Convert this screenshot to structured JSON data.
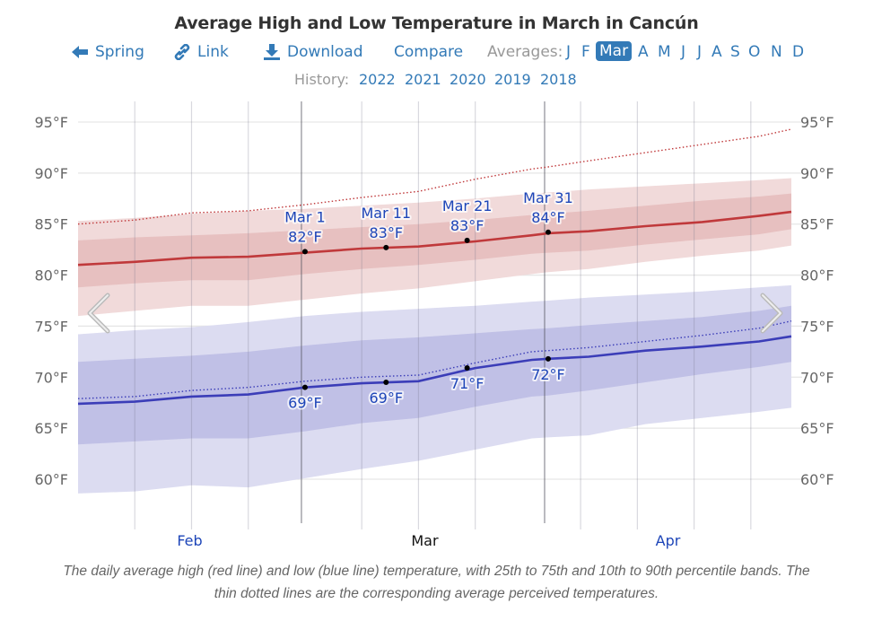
{
  "header": {
    "title": "Average High and Low Temperature in March in Cancún"
  },
  "nav": {
    "back_label": "Spring",
    "back_icon": "arrow-left-icon",
    "link_label": "Link",
    "link_icon": "link-icon",
    "download_label": "Download",
    "download_icon": "download-icon",
    "compare_label": "Compare",
    "averages_label": "Averages:",
    "months": [
      "J",
      "F",
      "Mar",
      "A",
      "M",
      "J",
      "J",
      "A",
      "S",
      "O",
      "N",
      "D"
    ],
    "active_month": "Mar"
  },
  "history": {
    "label": "History:",
    "years": [
      "2022",
      "2021",
      "2020",
      "2019",
      "2018"
    ]
  },
  "caption": "The daily average high (red line) and low (blue line) temperature, with 25th to 75th and 10th to 90th percentile bands. The thin dotted lines are the corresponding average perceived temperatures.",
  "colors": {
    "accent": "#337ab7",
    "high_line": "#c0393b",
    "high_band_inner": "#e7c0c0",
    "high_band_outer": "#f1dada",
    "low_line": "#3b3db8",
    "low_band_inner": "#c0c0e6",
    "low_band_outer": "#dcdcf1",
    "annotation_text": "#1d45b8"
  },
  "chart_data": {
    "type": "line",
    "title": "Average High and Low Temperature in March in Cancún",
    "xlabel": "",
    "ylabel": "",
    "x_unit": "days relative to Mar 1",
    "x_range": [
      -28,
      60
    ],
    "ylim": [
      56,
      97
    ],
    "y_ticks": [
      95,
      90,
      85,
      80,
      75,
      70,
      65,
      60
    ],
    "y_tick_labels": [
      "95°F",
      "90°F",
      "85°F",
      "80°F",
      "75°F",
      "70°F",
      "65°F",
      "60°F"
    ],
    "x_tick_labels": [
      {
        "label": "Feb",
        "day": -14,
        "highlight": false
      },
      {
        "label": "Mar",
        "day": 15,
        "highlight": true
      },
      {
        "label": "Apr",
        "day": 45,
        "highlight": false
      }
    ],
    "month_boundaries": [
      0,
      30
    ],
    "weekly_gridlines": [
      -21,
      -14,
      -7,
      7,
      14,
      21,
      34,
      41,
      48,
      55
    ],
    "x": [
      -28,
      -21,
      -14,
      -7,
      0,
      7,
      14,
      21,
      28,
      30,
      35,
      42,
      49,
      56,
      60
    ],
    "series": [
      {
        "name": "High 90th percentile",
        "values": [
          85.3,
          85.6,
          86.0,
          86.3,
          86.5,
          86.8,
          87.1,
          87.5,
          88.0,
          88.1,
          88.4,
          88.7,
          89.0,
          89.3,
          89.5
        ]
      },
      {
        "name": "High 75th percentile",
        "values": [
          83.4,
          83.7,
          83.9,
          84.1,
          84.4,
          84.7,
          85.0,
          85.4,
          85.9,
          86.0,
          86.3,
          86.8,
          87.3,
          87.7,
          88.0
        ]
      },
      {
        "name": "Average high",
        "values": [
          81.0,
          81.3,
          81.7,
          81.8,
          82.2,
          82.6,
          82.8,
          83.3,
          83.9,
          84.1,
          84.3,
          84.8,
          85.2,
          85.8,
          86.2
        ]
      },
      {
        "name": "High 25th percentile",
        "values": [
          78.8,
          79.2,
          79.5,
          79.5,
          80.1,
          80.6,
          81.0,
          81.5,
          82.1,
          82.2,
          82.4,
          83.0,
          83.5,
          84.0,
          84.5
        ]
      },
      {
        "name": "High 10th percentile",
        "values": [
          76.0,
          76.5,
          77.0,
          77.0,
          77.6,
          78.2,
          78.7,
          79.4,
          80.1,
          80.3,
          80.6,
          81.3,
          81.9,
          82.4,
          82.9
        ]
      },
      {
        "name": "Perceived high",
        "values": [
          85.0,
          85.4,
          86.1,
          86.3,
          86.9,
          87.6,
          88.2,
          89.4,
          90.4,
          90.6,
          91.2,
          92.0,
          92.8,
          93.6,
          94.3
        ]
      },
      {
        "name": "Low 90th percentile",
        "values": [
          74.2,
          74.6,
          74.9,
          75.4,
          76.0,
          76.4,
          76.7,
          77.0,
          77.4,
          77.5,
          77.8,
          78.1,
          78.4,
          78.8,
          79.0
        ]
      },
      {
        "name": "Low 75th percentile",
        "values": [
          71.5,
          71.8,
          72.1,
          72.5,
          73.1,
          73.6,
          73.9,
          74.3,
          74.7,
          74.8,
          75.1,
          75.5,
          75.9,
          76.5,
          77.0
        ]
      },
      {
        "name": "Average low",
        "values": [
          67.4,
          67.6,
          68.1,
          68.3,
          69.0,
          69.4,
          69.6,
          70.9,
          71.7,
          71.8,
          72.0,
          72.6,
          73.0,
          73.5,
          74.0
        ]
      },
      {
        "name": "Low 25th percentile",
        "values": [
          63.4,
          63.7,
          64.0,
          64.0,
          64.7,
          65.5,
          66.0,
          67.1,
          68.1,
          68.2,
          68.7,
          69.5,
          70.3,
          71.0,
          71.5
        ]
      },
      {
        "name": "Low 10th percentile",
        "values": [
          58.6,
          58.8,
          59.4,
          59.2,
          60.1,
          61.0,
          61.8,
          62.9,
          64.0,
          64.1,
          64.3,
          65.4,
          66.0,
          66.6,
          67.0
        ]
      },
      {
        "name": "Perceived low",
        "values": [
          67.9,
          68.1,
          68.7,
          69.0,
          69.6,
          70.0,
          70.2,
          71.4,
          72.5,
          72.6,
          72.9,
          73.5,
          74.1,
          74.8,
          75.5
        ]
      }
    ],
    "annotations_high": [
      {
        "day": 0,
        "date": "Mar 1",
        "value": "82°F",
        "y": 82.3
      },
      {
        "day": 10,
        "date": "Mar 11",
        "value": "83°F",
        "y": 82.7
      },
      {
        "day": 20,
        "date": "Mar 21",
        "value": "83°F",
        "y": 83.4
      },
      {
        "day": 30,
        "date": "Mar 31",
        "value": "84°F",
        "y": 84.2
      }
    ],
    "annotations_low": [
      {
        "day": 0,
        "value": "69°F",
        "y": 69.0
      },
      {
        "day": 10,
        "value": "69°F",
        "y": 69.5
      },
      {
        "day": 20,
        "value": "71°F",
        "y": 70.9
      },
      {
        "day": 30,
        "value": "72°F",
        "y": 71.8
      }
    ]
  }
}
